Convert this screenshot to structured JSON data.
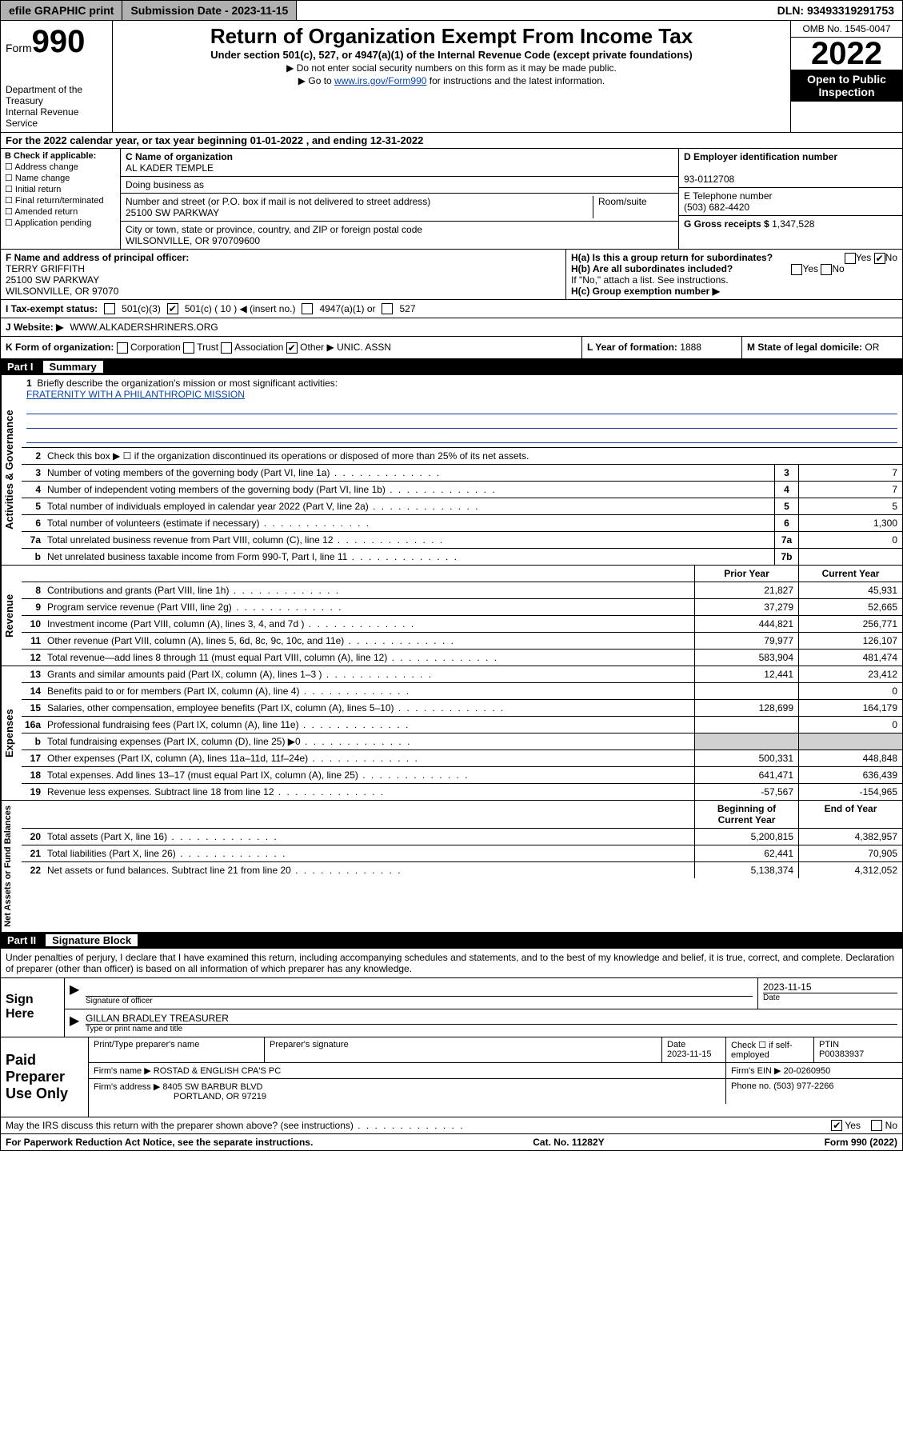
{
  "topbar": {
    "efile": "efile GRAPHIC print",
    "submission_label": "Submission Date - 2023-11-15",
    "dln": "DLN: 93493319291753"
  },
  "header": {
    "form_prefix": "Form",
    "form_number": "990",
    "dept": "Department of the Treasury",
    "irs": "Internal Revenue Service",
    "title": "Return of Organization Exempt From Income Tax",
    "subtitle": "Under section 501(c), 527, or 4947(a)(1) of the Internal Revenue Code (except private foundations)",
    "note1": "▶ Do not enter social security numbers on this form as it may be made public.",
    "note2_pre": "▶ Go to ",
    "note2_link": "www.irs.gov/Form990",
    "note2_post": " for instructions and the latest information.",
    "omb": "OMB No. 1545-0047",
    "year": "2022",
    "open_public": "Open to Public Inspection"
  },
  "taxyear": "For the 2022 calendar year, or tax year beginning 01-01-2022   , and ending 12-31-2022",
  "B": {
    "label": "B Check if applicable:",
    "opts": [
      "Address change",
      "Name change",
      "Initial return",
      "Final return/terminated",
      "Amended return",
      "Application pending"
    ]
  },
  "C": {
    "name_label": "C Name of organization",
    "name": "AL KADER TEMPLE",
    "dba_label": "Doing business as",
    "dba": "",
    "street_label": "Number and street (or P.O. box if mail is not delivered to street address)",
    "room_label": "Room/suite",
    "street": "25100 SW PARKWAY",
    "city_label": "City or town, state or province, country, and ZIP or foreign postal code",
    "city": "WILSONVILLE, OR  970709600"
  },
  "D": {
    "label": "D Employer identification number",
    "value": "93-0112708"
  },
  "E": {
    "label": "E Telephone number",
    "value": "(503) 682-4420"
  },
  "G": {
    "label": "G Gross receipts $",
    "value": "1,347,528"
  },
  "F": {
    "label": "F  Name and address of principal officer:",
    "name": "TERRY GRIFFITH",
    "street": "25100 SW PARKWAY",
    "city": "WILSONVILLE, OR  97070"
  },
  "H": {
    "a": "H(a)  Is this a group return for subordinates?",
    "a_yes": "Yes",
    "a_no": "No",
    "b": "H(b)  Are all subordinates included?",
    "b_note": "If \"No,\" attach a list. See instructions.",
    "c": "H(c)  Group exemption number ▶"
  },
  "I": {
    "label": "I   Tax-exempt status:",
    "opt1": "501(c)(3)",
    "opt2": "501(c) ( 10 ) ◀ (insert no.)",
    "opt3": "4947(a)(1) or",
    "opt4": "527"
  },
  "J": {
    "label": "J   Website: ▶",
    "value": "WWW.ALKADERSHRINERS.ORG"
  },
  "K": {
    "label": "K Form of organization:",
    "opts": [
      "Corporation",
      "Trust",
      "Association",
      "Other ▶"
    ],
    "other_val": "UNIC. ASSN",
    "L_label": "L Year of formation:",
    "L_val": "1888",
    "M_label": "M State of legal domicile:",
    "M_val": "OR"
  },
  "partI": {
    "num": "Part I",
    "title": "Summary",
    "line1_label": "Briefly describe the organization's mission or most significant activities:",
    "line1_val": "FRATERNITY WITH A PHILANTHROPIC MISSION",
    "line2": "Check this box ▶ ☐  if the organization discontinued its operations or disposed of more than 25% of its net assets.",
    "prior_year": "Prior Year",
    "current_year": "Current Year",
    "beg_year": "Beginning of Current Year",
    "end_year": "End of Year"
  },
  "sections": {
    "activities": {
      "label": "Activities & Governance",
      "lines": [
        {
          "n": "3",
          "d": "Number of voting members of the governing body (Part VI, line 1a)",
          "box": "3",
          "v": "7"
        },
        {
          "n": "4",
          "d": "Number of independent voting members of the governing body (Part VI, line 1b)",
          "box": "4",
          "v": "7"
        },
        {
          "n": "5",
          "d": "Total number of individuals employed in calendar year 2022 (Part V, line 2a)",
          "box": "5",
          "v": "5"
        },
        {
          "n": "6",
          "d": "Total number of volunteers (estimate if necessary)",
          "box": "6",
          "v": "1,300"
        },
        {
          "n": "7a",
          "d": "Total unrelated business revenue from Part VIII, column (C), line 12",
          "box": "7a",
          "v": "0"
        },
        {
          "n": "b",
          "d": "Net unrelated business taxable income from Form 990-T, Part I, line 11",
          "box": "7b",
          "v": ""
        }
      ]
    },
    "revenue": {
      "label": "Revenue",
      "lines": [
        {
          "n": "8",
          "d": "Contributions and grants (Part VIII, line 1h)",
          "p": "21,827",
          "c": "45,931"
        },
        {
          "n": "9",
          "d": "Program service revenue (Part VIII, line 2g)",
          "p": "37,279",
          "c": "52,665"
        },
        {
          "n": "10",
          "d": "Investment income (Part VIII, column (A), lines 3, 4, and 7d )",
          "p": "444,821",
          "c": "256,771"
        },
        {
          "n": "11",
          "d": "Other revenue (Part VIII, column (A), lines 5, 6d, 8c, 9c, 10c, and 11e)",
          "p": "79,977",
          "c": "126,107"
        },
        {
          "n": "12",
          "d": "Total revenue—add lines 8 through 11 (must equal Part VIII, column (A), line 12)",
          "p": "583,904",
          "c": "481,474"
        }
      ]
    },
    "expenses": {
      "label": "Expenses",
      "lines": [
        {
          "n": "13",
          "d": "Grants and similar amounts paid (Part IX, column (A), lines 1–3 )",
          "p": "12,441",
          "c": "23,412"
        },
        {
          "n": "14",
          "d": "Benefits paid to or for members (Part IX, column (A), line 4)",
          "p": "",
          "c": "0"
        },
        {
          "n": "15",
          "d": "Salaries, other compensation, employee benefits (Part IX, column (A), lines 5–10)",
          "p": "128,699",
          "c": "164,179"
        },
        {
          "n": "16a",
          "d": "Professional fundraising fees (Part IX, column (A), line 11e)",
          "p": "",
          "c": "0"
        },
        {
          "n": "b",
          "d": "Total fundraising expenses (Part IX, column (D), line 25) ▶0",
          "p": "",
          "c": "",
          "gray": true
        },
        {
          "n": "17",
          "d": "Other expenses (Part IX, column (A), lines 11a–11d, 11f–24e)",
          "p": "500,331",
          "c": "448,848"
        },
        {
          "n": "18",
          "d": "Total expenses. Add lines 13–17 (must equal Part IX, column (A), line 25)",
          "p": "641,471",
          "c": "636,439"
        },
        {
          "n": "19",
          "d": "Revenue less expenses. Subtract line 18 from line 12",
          "p": "-57,567",
          "c": "-154,965"
        }
      ]
    },
    "netassets": {
      "label": "Net Assets or Fund Balances",
      "lines": [
        {
          "n": "20",
          "d": "Total assets (Part X, line 16)",
          "p": "5,200,815",
          "c": "4,382,957"
        },
        {
          "n": "21",
          "d": "Total liabilities (Part X, line 26)",
          "p": "62,441",
          "c": "70,905"
        },
        {
          "n": "22",
          "d": "Net assets or fund balances. Subtract line 21 from line 20",
          "p": "5,138,374",
          "c": "4,312,052"
        }
      ]
    }
  },
  "partII": {
    "num": "Part II",
    "title": "Signature Block",
    "decl": "Under penalties of perjury, I declare that I have examined this return, including accompanying schedules and statements, and to the best of my knowledge and belief, it is true, correct, and complete. Declaration of preparer (other than officer) is based on all information of which preparer has any knowledge."
  },
  "sign": {
    "here": "Sign Here",
    "sig_label": "Signature of officer",
    "date_label": "Date",
    "date": "2023-11-15",
    "name": "GILLAN BRADLEY  TREASURER",
    "name_label": "Type or print name and title"
  },
  "paid": {
    "label": "Paid Preparer Use Only",
    "col1": "Print/Type preparer's name",
    "col2": "Preparer's signature",
    "col3_label": "Date",
    "col3": "2023-11-15",
    "col4_label": "Check ☐ if self-employed",
    "col5_label": "PTIN",
    "col5": "P00383937",
    "firm_name_label": "Firm's name      ▶",
    "firm_name": "ROSTAD & ENGLISH CPA'S PC",
    "firm_ein_label": "Firm's EIN ▶",
    "firm_ein": "20-0260950",
    "firm_addr_label": "Firm's address ▶",
    "firm_addr": "8405 SW BARBUR BLVD",
    "firm_city": "PORTLAND, OR  97219",
    "phone_label": "Phone no.",
    "phone": "(503) 977-2266"
  },
  "discuss": {
    "text": "May the IRS discuss this return with the preparer shown above? (see instructions)",
    "yes": "Yes",
    "no": "No"
  },
  "footer": {
    "left": "For Paperwork Reduction Act Notice, see the separate instructions.",
    "mid": "Cat. No. 11282Y",
    "right": "Form 990 (2022)"
  }
}
